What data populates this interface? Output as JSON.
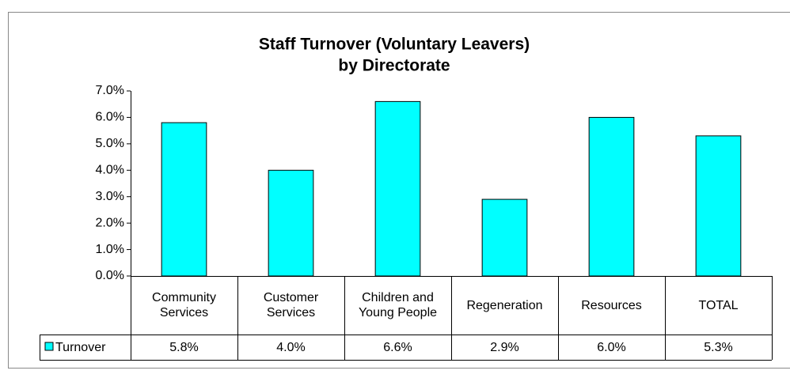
{
  "chart_data": {
    "type": "bar",
    "title": [
      "Staff Turnover (Voluntary Leavers)",
      "by Directorate"
    ],
    "categories": [
      "Community Services",
      "Customer Services",
      "Children and Young People",
      "Regeneration",
      "Resources",
      "TOTAL"
    ],
    "series": [
      {
        "name": "Turnover",
        "color": "#00ffff",
        "values": [
          5.8,
          4.0,
          6.6,
          2.9,
          6.0,
          5.3
        ],
        "value_labels": [
          "5.8%",
          "4.0%",
          "6.6%",
          "2.9%",
          "6.0%",
          "5.3%"
        ]
      }
    ],
    "ylim": [
      0,
      7
    ],
    "yticks": [
      {
        "value": 0,
        "label": "0.0%"
      },
      {
        "value": 1,
        "label": "1.0%"
      },
      {
        "value": 2,
        "label": "2.0%"
      },
      {
        "value": 3,
        "label": "3.0%"
      },
      {
        "value": 4,
        "label": "4.0%"
      },
      {
        "value": 5,
        "label": "5.0%"
      },
      {
        "value": 6,
        "label": "6.0%"
      },
      {
        "value": 7,
        "label": "7.0%"
      }
    ],
    "grid": false
  }
}
